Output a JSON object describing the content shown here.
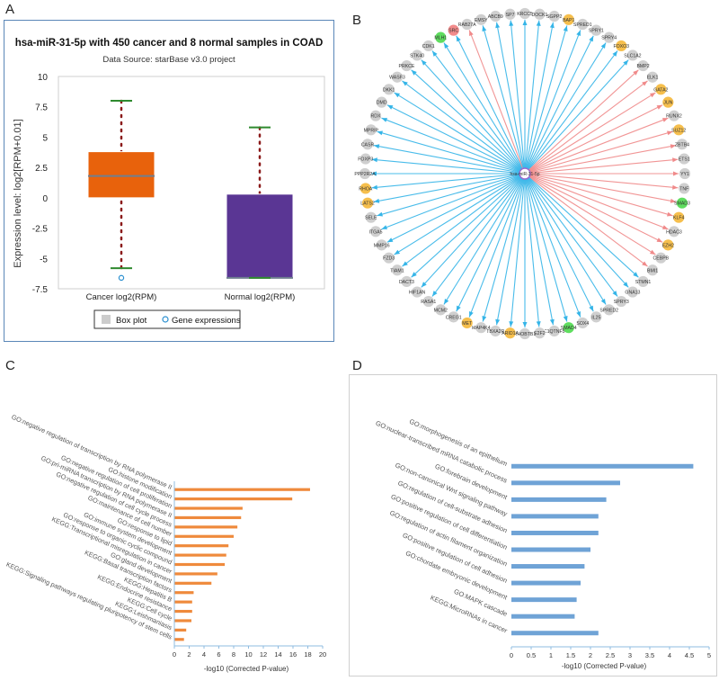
{
  "letters": {
    "a": "A",
    "b": "B",
    "c": "C",
    "d": "D"
  },
  "colors": {
    "cancer_box": "#e8620c",
    "normal_box": "#5a3694",
    "median": "#6f7f8f",
    "whisker_cap": "#2f8a2f",
    "outlier_dots": "#8b1a1a",
    "edge_up": "#35b5e8",
    "edge_down": "#f08a8a",
    "node_grey": "#cfcfcf",
    "node_orange": "#f6bf4d",
    "node_green": "#5fdd5f",
    "node_red": "#f28b8b",
    "bar_c": "#ef8a3c",
    "bar_d": "#6fa3d6"
  },
  "panel_a": {
    "title": "hsa-miR-31-5p with 450 cancer and 8 normal samples in COAD",
    "subtitle": "Data Source: starBase v3.0 project",
    "legend": {
      "box_label": "Box plot",
      "gene_label": "Gene expressions"
    },
    "chart_data": {
      "type": "box",
      "title": "hsa-miR-31-5p with 450 cancer and 8 normal samples in COAD",
      "ylabel": "Expression level: log2[RPM+0.01]",
      "ylim": [
        -7.5,
        10
      ],
      "yticks": [
        "10",
        "7.5",
        "5",
        "2.5",
        "0",
        "-2.5",
        "-5",
        "-7.5"
      ],
      "categories": [
        "Cancer log2(RPM)",
        "Normal log2(RPM)"
      ],
      "boxes": [
        {
          "name": "Cancer log2(RPM)",
          "whisker_max": 8.0,
          "q3": 3.8,
          "median": 1.8,
          "q1": 0.0,
          "whisker_min": -5.8,
          "outlier": -6.6
        },
        {
          "name": "Normal log2(RPM)",
          "whisker_max": 5.8,
          "q3": 0.3,
          "median": -6.6,
          "q1": -6.6,
          "whisker_min": -6.6
        }
      ]
    }
  },
  "panel_b": {
    "center": "hsa-miR-31-5p",
    "nodes": [
      {
        "label": "KRCC5",
        "type": "grey",
        "dir": "up"
      },
      {
        "label": "DOCK1",
        "type": "grey",
        "dir": "up"
      },
      {
        "label": "SGPP2",
        "type": "grey",
        "dir": "up"
      },
      {
        "label": "BAP1",
        "type": "orange",
        "dir": "up"
      },
      {
        "label": "SPRED1",
        "type": "grey",
        "dir": "up"
      },
      {
        "label": "SPRY1",
        "type": "grey",
        "dir": "up"
      },
      {
        "label": "SPRY4",
        "type": "grey",
        "dir": "up"
      },
      {
        "label": "FOXO3",
        "type": "orange",
        "dir": "up"
      },
      {
        "label": "SLC1A2",
        "type": "grey",
        "dir": "up"
      },
      {
        "label": "BMP2",
        "type": "grey",
        "dir": "down"
      },
      {
        "label": "ELK1",
        "type": "grey",
        "dir": "down"
      },
      {
        "label": "GATA2",
        "type": "orange",
        "dir": "down"
      },
      {
        "label": "JUN",
        "type": "orange",
        "dir": "down"
      },
      {
        "label": "RUNX2",
        "type": "grey",
        "dir": "down"
      },
      {
        "label": "SUZ12",
        "type": "orange",
        "dir": "down"
      },
      {
        "label": "ZBTB4",
        "type": "grey",
        "dir": "down"
      },
      {
        "label": "ETS1",
        "type": "grey",
        "dir": "down"
      },
      {
        "label": "YY1",
        "type": "grey",
        "dir": "down"
      },
      {
        "label": "TNF",
        "type": "grey",
        "dir": "down"
      },
      {
        "label": "SMAD3",
        "type": "green",
        "dir": "down"
      },
      {
        "label": "KLF4",
        "type": "orange",
        "dir": "down"
      },
      {
        "label": "HDAC3",
        "type": "grey",
        "dir": "down"
      },
      {
        "label": "EZH2",
        "type": "orange",
        "dir": "down"
      },
      {
        "label": "CEBPB",
        "type": "grey",
        "dir": "down"
      },
      {
        "label": "BMI1",
        "type": "grey",
        "dir": "down"
      },
      {
        "label": "STMN1",
        "type": "grey",
        "dir": "up"
      },
      {
        "label": "GNA13",
        "type": "grey",
        "dir": "up"
      },
      {
        "label": "SPRY3",
        "type": "grey",
        "dir": "up"
      },
      {
        "label": "SPRED2",
        "type": "grey",
        "dir": "up"
      },
      {
        "label": "IL25",
        "type": "grey",
        "dir": "up"
      },
      {
        "label": "SOX4",
        "type": "grey",
        "dir": "up"
      },
      {
        "label": "SMAD4",
        "type": "green",
        "dir": "up"
      },
      {
        "label": "C1QTNF5",
        "type": "grey",
        "dir": "up"
      },
      {
        "label": "E2F2",
        "type": "grey",
        "dir": "up"
      },
      {
        "label": "RHOBTB1",
        "type": "grey",
        "dir": "up"
      },
      {
        "label": "ARID1A",
        "type": "orange",
        "dir": "up"
      },
      {
        "label": "TBXA2R",
        "type": "grey",
        "dir": "up"
      },
      {
        "label": "MAP4K4",
        "type": "grey",
        "dir": "up"
      },
      {
        "label": "MET",
        "type": "orange",
        "dir": "up"
      },
      {
        "label": "CREG1",
        "type": "grey",
        "dir": "up"
      },
      {
        "label": "MCM2",
        "type": "grey",
        "dir": "up"
      },
      {
        "label": "RASA1",
        "type": "grey",
        "dir": "up"
      },
      {
        "label": "HIF1AN",
        "type": "grey",
        "dir": "up"
      },
      {
        "label": "DACT3",
        "type": "grey",
        "dir": "up"
      },
      {
        "label": "TIAM1",
        "type": "grey",
        "dir": "up"
      },
      {
        "label": "FZD3",
        "type": "grey",
        "dir": "up"
      },
      {
        "label": "MMP16",
        "type": "grey",
        "dir": "up"
      },
      {
        "label": "ITGA5",
        "type": "grey",
        "dir": "up"
      },
      {
        "label": "SELE",
        "type": "grey",
        "dir": "up"
      },
      {
        "label": "LATS2",
        "type": "orange",
        "dir": "up"
      },
      {
        "label": "RHOA",
        "type": "orange",
        "dir": "up"
      },
      {
        "label": "PPP2R2A",
        "type": "grey",
        "dir": "up"
      },
      {
        "label": "FOXP3",
        "type": "grey",
        "dir": "up"
      },
      {
        "label": "CASR",
        "type": "grey",
        "dir": "up"
      },
      {
        "label": "MPRIP",
        "type": "grey",
        "dir": "up"
      },
      {
        "label": "RDX",
        "type": "grey",
        "dir": "up"
      },
      {
        "label": "DMD",
        "type": "grey",
        "dir": "up"
      },
      {
        "label": "DKK1",
        "type": "grey",
        "dir": "up"
      },
      {
        "label": "WASF3",
        "type": "grey",
        "dir": "up"
      },
      {
        "label": "PRKCE",
        "type": "grey",
        "dir": "up"
      },
      {
        "label": "STK40",
        "type": "grey",
        "dir": "up"
      },
      {
        "label": "CDK1",
        "type": "grey",
        "dir": "up"
      },
      {
        "label": "MLH1",
        "type": "green",
        "dir": "up"
      },
      {
        "label": "SRC",
        "type": "red",
        "dir": "up"
      },
      {
        "label": "RAB27A",
        "type": "grey",
        "dir": "down"
      },
      {
        "label": "EMSY",
        "type": "grey",
        "dir": "up"
      },
      {
        "label": "ABCB9",
        "type": "grey",
        "dir": "up"
      },
      {
        "label": "SP7",
        "type": "grey",
        "dir": "up"
      }
    ]
  },
  "panel_c": {
    "chart_data": {
      "type": "bar",
      "orientation": "horizontal",
      "xlabel": "-log10 (Corrected P-value)",
      "xlim": [
        0,
        20
      ],
      "xticks": [
        "0",
        "2",
        "4",
        "6",
        "8",
        "10",
        "12",
        "14",
        "16",
        "18",
        "20"
      ],
      "categories": [
        "GO:negative regulation of transcription by RNA polymerase II",
        "GO:histone modification",
        "GO:negative regulation of cell proliferation",
        "GO:pri-miRNA transcription by RNA polymerase II",
        "GO:negative regulation of cell cycle process",
        "GO:maintenance of cell number",
        "GO:response to lipid",
        "GO:immune system development",
        "GO:response to organic cyclic compound",
        "KEGG:Transcriptional misregulation in cancer",
        "GO:gland development",
        "KEGG:Basal transcription factors",
        "KEGG:Hepatitis B",
        "KEGG:Endocrine resistance",
        "KEGG:Cell cycle",
        "KEGG:Leishmaniasis",
        "KEGG:Signaling pathways regulating pluripotency of stem cells"
      ],
      "values": [
        18.3,
        15.9,
        9.2,
        9.0,
        8.5,
        8.0,
        7.3,
        7.0,
        6.8,
        5.8,
        5.0,
        2.6,
        2.4,
        2.4,
        2.3,
        1.6,
        1.3
      ]
    }
  },
  "panel_d": {
    "chart_data": {
      "type": "bar",
      "orientation": "horizontal",
      "xlabel": "-log10 (Corrected P-value)",
      "xlim": [
        0,
        5
      ],
      "xticks": [
        "0",
        "0.5",
        "1",
        "1.5",
        "2",
        "2.5",
        "3",
        "3.5",
        "4",
        "4.5",
        "5"
      ],
      "categories": [
        "GO:morphogenesis of an epithelium",
        "GO:nuclear-transcribed mRNA catabolic process",
        "GO:forebrain development",
        "GO:non-canonical Wnt signaling pathway",
        "GO:regulation of cell-substrate adhesion",
        "GO:positive regulation of cell differentiation",
        "GO:regulation of actin filament organization",
        "GO:positive regulation of cell adhesion",
        "GO:chordate embryonic development",
        "GO:MAPK cascade",
        "KEGG:MicroRNAs in cancer"
      ],
      "values": [
        4.6,
        2.75,
        2.4,
        2.2,
        2.2,
        2.0,
        1.85,
        1.75,
        1.65,
        1.6,
        2.2
      ]
    }
  }
}
